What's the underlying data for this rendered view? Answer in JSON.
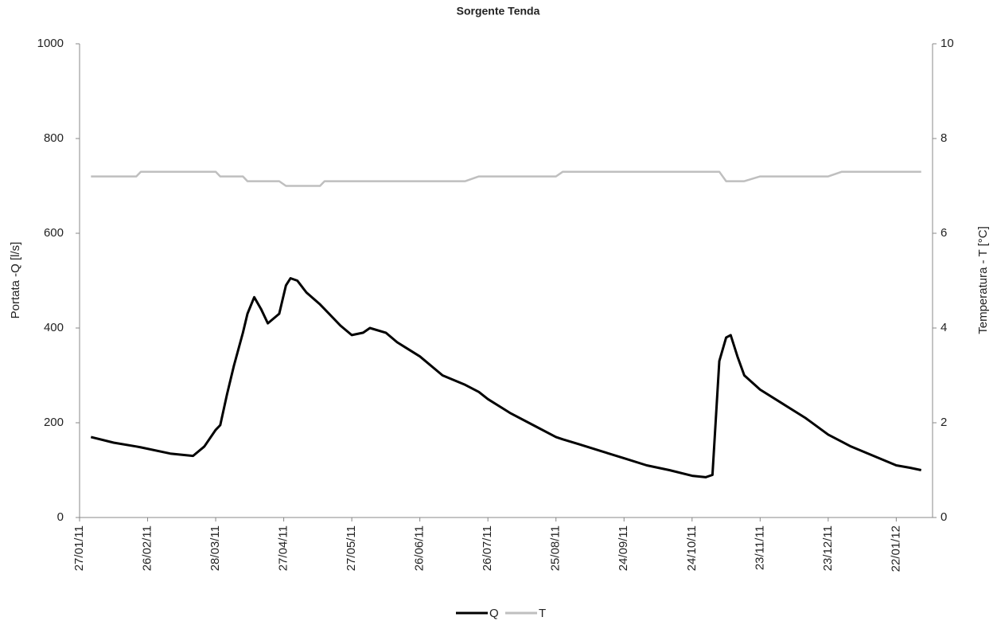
{
  "chart_data": {
    "type": "line",
    "title": "Sorgente Tenda",
    "y_label": "Portata  -Q [l/s]",
    "y2_label": "Temperatura - T [°C]",
    "x": [
      "2011-02-01",
      "2011-02-11",
      "2011-02-21",
      "2011-02-23",
      "2011-03-08",
      "2011-03-18",
      "2011-03-23",
      "2011-03-28",
      "2011-03-30",
      "2011-04-02",
      "2011-04-05",
      "2011-04-09",
      "2011-04-11",
      "2011-04-14",
      "2011-04-17",
      "2011-04-20",
      "2011-04-25",
      "2011-04-28",
      "2011-04-30",
      "2011-05-03",
      "2011-05-07",
      "2011-05-13",
      "2011-05-15",
      "2011-05-22",
      "2011-05-27",
      "2011-06-01",
      "2011-06-04",
      "2011-06-11",
      "2011-06-16",
      "2011-06-26",
      "2011-07-06",
      "2011-07-16",
      "2011-07-22",
      "2011-07-26",
      "2011-08-05",
      "2011-08-15",
      "2011-08-25",
      "2011-08-28",
      "2011-09-04",
      "2011-09-14",
      "2011-09-24",
      "2011-10-04",
      "2011-10-14",
      "2011-10-24",
      "2011-10-30",
      "2011-11-02",
      "2011-11-05",
      "2011-11-08",
      "2011-11-10",
      "2011-11-13",
      "2011-11-16",
      "2011-11-23",
      "2011-12-03",
      "2011-12-13",
      "2011-12-23",
      "2011-12-29",
      "2012-01-02",
      "2012-01-12",
      "2012-01-22",
      "2012-01-28",
      "2012-02-02"
    ],
    "series": [
      {
        "name": "Q",
        "color": "#000000",
        "axis": "y",
        "values": [
          170,
          158,
          150,
          148,
          135,
          130,
          150,
          185,
          195,
          260,
          320,
          390,
          430,
          465,
          440,
          410,
          430,
          490,
          505,
          500,
          475,
          450,
          440,
          405,
          385,
          390,
          400,
          390,
          370,
          340,
          300,
          280,
          265,
          250,
          220,
          195,
          170,
          165,
          155,
          140,
          125,
          110,
          100,
          88,
          85,
          90,
          330,
          380,
          385,
          340,
          300,
          270,
          240,
          210,
          175,
          160,
          150,
          130,
          110,
          105,
          100
        ]
      },
      {
        "name": "T",
        "color": "#bfbfbf",
        "axis": "y2",
        "values": [
          7.2,
          7.2,
          7.2,
          7.3,
          7.3,
          7.3,
          7.3,
          7.3,
          7.2,
          7.2,
          7.2,
          7.2,
          7.1,
          7.1,
          7.1,
          7.1,
          7.1,
          7.0,
          7.0,
          7.0,
          7.0,
          7.0,
          7.1,
          7.1,
          7.1,
          7.1,
          7.1,
          7.1,
          7.1,
          7.1,
          7.1,
          7.1,
          7.2,
          7.2,
          7.2,
          7.2,
          7.2,
          7.3,
          7.3,
          7.3,
          7.3,
          7.3,
          7.3,
          7.3,
          7.3,
          7.3,
          7.3,
          7.1,
          7.1,
          7.1,
          7.1,
          7.2,
          7.2,
          7.2,
          7.2,
          7.3,
          7.3,
          7.3,
          7.3,
          7.3,
          7.3
        ]
      }
    ],
    "xlim": [
      "2011-01-27",
      "2012-02-07"
    ],
    "xticks": [
      {
        "value": "2011-01-27",
        "label": "27/01/11"
      },
      {
        "value": "2011-02-26",
        "label": "26/02/11"
      },
      {
        "value": "2011-03-28",
        "label": "28/03/11"
      },
      {
        "value": "2011-04-27",
        "label": "27/04/11"
      },
      {
        "value": "2011-05-27",
        "label": "27/05/11"
      },
      {
        "value": "2011-06-26",
        "label": "26/06/11"
      },
      {
        "value": "2011-07-26",
        "label": "26/07/11"
      },
      {
        "value": "2011-08-25",
        "label": "25/08/11"
      },
      {
        "value": "2011-09-24",
        "label": "24/09/11"
      },
      {
        "value": "2011-10-24",
        "label": "24/10/11"
      },
      {
        "value": "2011-11-23",
        "label": "23/11/11"
      },
      {
        "value": "2011-12-23",
        "label": "23/12/11"
      },
      {
        "value": "2012-01-22",
        "label": "22/01/12"
      }
    ],
    "ylim": [
      0,
      1000
    ],
    "yticks": [
      0,
      200,
      400,
      600,
      800,
      1000
    ],
    "y2lim": [
      0,
      10
    ],
    "y2ticks": [
      0,
      2,
      4,
      6,
      8,
      10
    ],
    "grid": false,
    "legend": "bottom"
  }
}
